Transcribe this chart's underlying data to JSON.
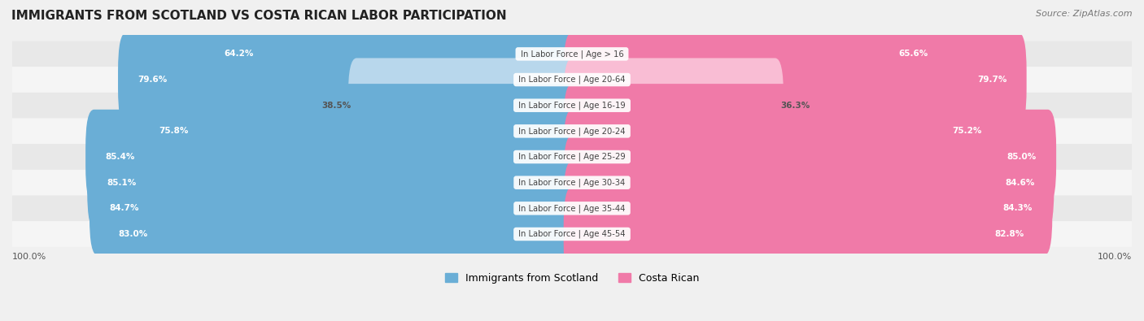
{
  "title": "IMMIGRANTS FROM SCOTLAND VS COSTA RICAN LABOR PARTICIPATION",
  "source": "Source: ZipAtlas.com",
  "categories": [
    "In Labor Force | Age > 16",
    "In Labor Force | Age 20-64",
    "In Labor Force | Age 16-19",
    "In Labor Force | Age 20-24",
    "In Labor Force | Age 25-29",
    "In Labor Force | Age 30-34",
    "In Labor Force | Age 35-44",
    "In Labor Force | Age 45-54"
  ],
  "scotland_values": [
    64.2,
    79.6,
    38.5,
    75.8,
    85.4,
    85.1,
    84.7,
    83.0
  ],
  "costarican_values": [
    65.6,
    79.7,
    36.3,
    75.2,
    85.0,
    84.6,
    84.3,
    82.8
  ],
  "scotland_color_strong": "#6aaed6",
  "scotland_color_light": "#b8d7ec",
  "costarican_color_strong": "#f07aa8",
  "costarican_color_light": "#f9bdd4",
  "label_scotland": "Immigrants from Scotland",
  "label_costarican": "Costa Rican",
  "bar_height": 0.68,
  "background_color": "#f0f0f0",
  "row_bg_colors": [
    "#e8e8e8",
    "#f5f5f5"
  ],
  "max_value": 100.0
}
